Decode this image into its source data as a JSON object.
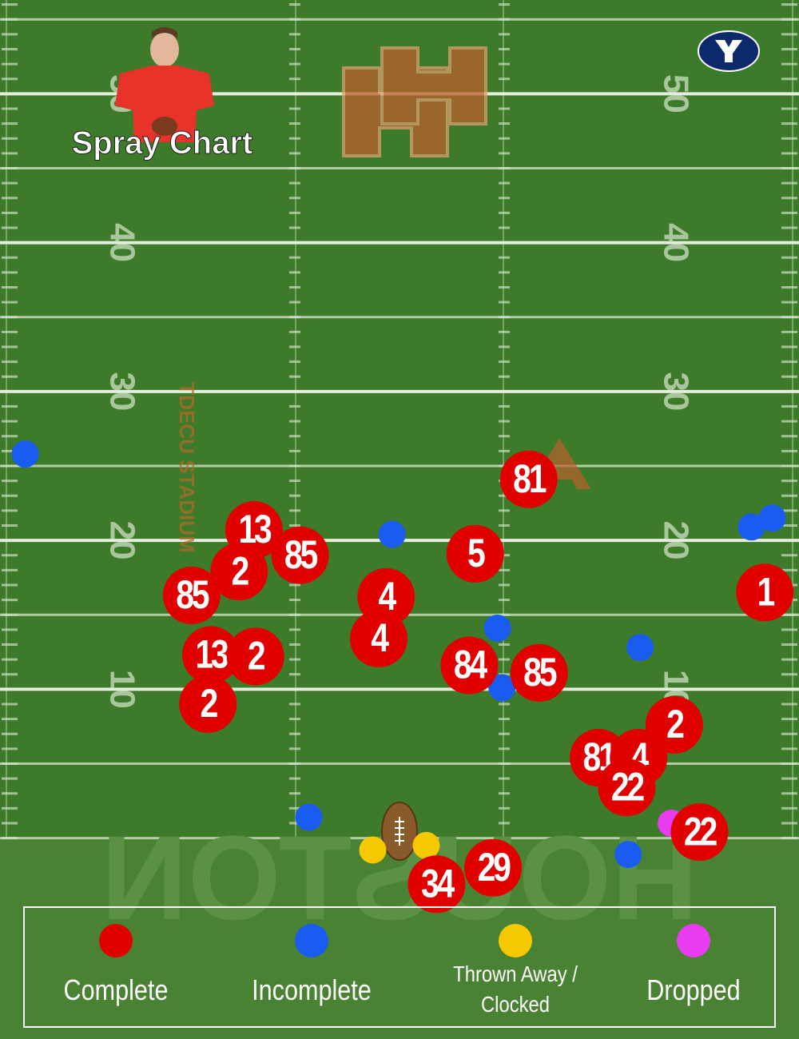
{
  "chart_data": {
    "type": "scatter",
    "title": "Spray Chart",
    "field_texts": [
      "HOUSTON",
      "TDECU STADIUM"
    ],
    "xlim": [
      0,
      53.8
    ],
    "ylim": [
      -13.5,
      56.3
    ],
    "yticks": [
      10,
      20,
      30,
      40,
      50
    ],
    "series": [
      {
        "name": "Complete",
        "color": "#e00000",
        "x": [
          35.6,
          17.1,
          20.2,
          16.1,
          12.9,
          32.0,
          26.0,
          25.5,
          51.5,
          14.2,
          17.2,
          14.0,
          31.6,
          36.3,
          45.4,
          40.3,
          43.0,
          42.2,
          47.1,
          33.2,
          29.4
        ],
        "values": [
          24.1,
          20.7,
          19.0,
          17.9,
          16.3,
          19.1,
          16.2,
          13.4,
          16.5,
          12.3,
          12.2,
          9.0,
          11.6,
          11.1,
          7.6,
          5.4,
          5.4,
          3.4,
          0.4,
          -2.0,
          -3.1
        ],
        "labels": [
          "81",
          "13",
          "85",
          "2",
          "85",
          "5",
          "4",
          "4",
          "1",
          "13",
          "2",
          "2",
          "84",
          "85",
          "2",
          "81",
          "4",
          "22",
          "22",
          "29",
          "34"
        ]
      },
      {
        "name": "Incomplete",
        "color": "#1a5cf0",
        "x": [
          1.7,
          26.4,
          50.6,
          52.0,
          33.5,
          43.1,
          33.8,
          20.8,
          42.3
        ],
        "values": [
          25.8,
          20.4,
          20.9,
          21.5,
          14.1,
          12.8,
          10.1,
          1.4,
          -1.1
        ]
      },
      {
        "name": "Thrown Away / Clocked",
        "color": "#f5c800",
        "x": [
          25.1,
          28.7
        ],
        "values": [
          -0.8,
          -0.5
        ]
      },
      {
        "name": "Dropped",
        "color": "#e83cf0",
        "x": [
          45.2
        ],
        "values": [
          1.0
        ]
      }
    ]
  }
}
